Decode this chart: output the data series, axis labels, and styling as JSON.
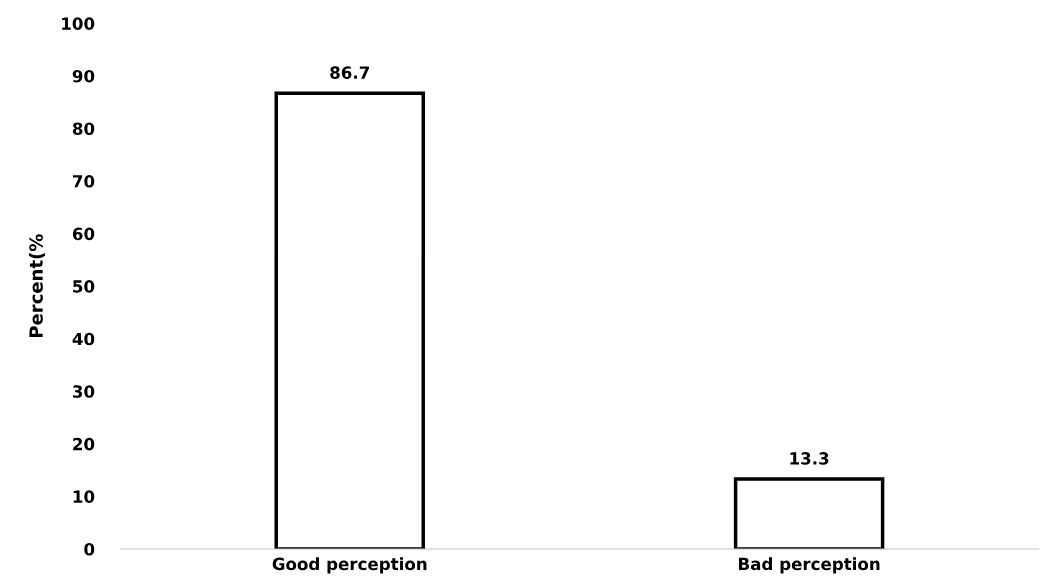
{
  "chart_data": {
    "type": "bar",
    "ylabel": "Percent(%",
    "categories": [
      "Good perception",
      "Bad perception"
    ],
    "values": [
      86.7,
      13.3
    ],
    "color": "#ffffff",
    "ylim": [
      0,
      100
    ],
    "yticks": [
      0,
      10,
      20,
      30,
      40,
      50,
      60,
      70,
      80,
      90,
      100
    ],
    "data_labels": true,
    "grid": false,
    "legend": false
  }
}
